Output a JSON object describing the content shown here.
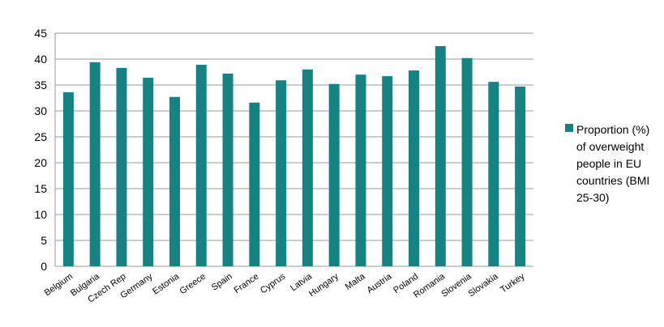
{
  "chart_data": {
    "type": "bar",
    "categories": [
      "Belgium",
      "Bulgaria",
      "Czech Rep",
      "Germany",
      "Estonia",
      "Greece",
      "Spain",
      "France",
      "Cyprus",
      "Latvia",
      "Hungary",
      "Malta",
      "Austria",
      "Poland",
      "Romania",
      "Slovenia",
      "Slovakia",
      "Turkey"
    ],
    "series": [
      {
        "name": "Proportion (%) of overweight people in EU countries (BMI 25-30)",
        "color": "#168383",
        "values": [
          33.6,
          39.4,
          38.3,
          36.4,
          32.7,
          38.9,
          37.2,
          31.6,
          35.9,
          38.0,
          35.2,
          37.0,
          36.7,
          37.8,
          42.5,
          40.2,
          35.6,
          34.7
        ]
      }
    ],
    "ylim": [
      0,
      45
    ],
    "yticks": [
      0,
      5,
      10,
      15,
      20,
      25,
      30,
      35,
      40,
      45
    ],
    "grid": true,
    "legend": "right"
  }
}
